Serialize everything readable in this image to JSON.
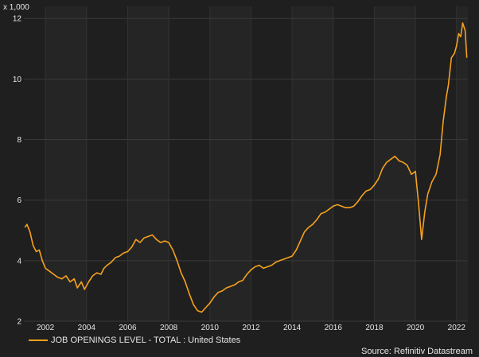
{
  "chart_data": {
    "type": "line",
    "unit_label": "x 1,000",
    "x_ticks": [
      "2002",
      "2004",
      "2006",
      "2008",
      "2010",
      "2012",
      "2014",
      "2016",
      "2018",
      "2020",
      "2022"
    ],
    "y_ticks": [
      "2",
      "4",
      "6",
      "8",
      "10",
      "12"
    ],
    "xlim": [
      2000.95,
      2022.55
    ],
    "ylim": [
      2,
      12.4
    ],
    "grid": true,
    "legend_position": "bottom-left",
    "source": "Source: Refinitiv Datastream",
    "series": [
      {
        "name": "JOB OPENINGS LEVEL - TOTAL : United States",
        "color": "#f5a11d",
        "points": [
          [
            2001.0,
            5.1
          ],
          [
            2001.1,
            5.2
          ],
          [
            2001.25,
            4.95
          ],
          [
            2001.4,
            4.5
          ],
          [
            2001.55,
            4.3
          ],
          [
            2001.7,
            4.35
          ],
          [
            2001.85,
            4.0
          ],
          [
            2002.0,
            3.75
          ],
          [
            2002.2,
            3.65
          ],
          [
            2002.4,
            3.55
          ],
          [
            2002.6,
            3.45
          ],
          [
            2002.8,
            3.4
          ],
          [
            2003.0,
            3.5
          ],
          [
            2003.2,
            3.3
          ],
          [
            2003.4,
            3.4
          ],
          [
            2003.55,
            3.1
          ],
          [
            2003.75,
            3.3
          ],
          [
            2003.9,
            3.05
          ],
          [
            2004.1,
            3.3
          ],
          [
            2004.3,
            3.5
          ],
          [
            2004.5,
            3.6
          ],
          [
            2004.7,
            3.55
          ],
          [
            2004.85,
            3.75
          ],
          [
            2005.0,
            3.85
          ],
          [
            2005.2,
            3.95
          ],
          [
            2005.4,
            4.1
          ],
          [
            2005.6,
            4.15
          ],
          [
            2005.8,
            4.25
          ],
          [
            2006.0,
            4.3
          ],
          [
            2006.2,
            4.45
          ],
          [
            2006.4,
            4.7
          ],
          [
            2006.6,
            4.6
          ],
          [
            2006.8,
            4.75
          ],
          [
            2007.0,
            4.8
          ],
          [
            2007.2,
            4.85
          ],
          [
            2007.4,
            4.7
          ],
          [
            2007.6,
            4.6
          ],
          [
            2007.8,
            4.65
          ],
          [
            2008.0,
            4.6
          ],
          [
            2008.2,
            4.35
          ],
          [
            2008.4,
            4.0
          ],
          [
            2008.6,
            3.6
          ],
          [
            2008.8,
            3.3
          ],
          [
            2009.0,
            2.9
          ],
          [
            2009.2,
            2.55
          ],
          [
            2009.4,
            2.35
          ],
          [
            2009.6,
            2.3
          ],
          [
            2009.8,
            2.45
          ],
          [
            2010.0,
            2.6
          ],
          [
            2010.2,
            2.8
          ],
          [
            2010.4,
            2.95
          ],
          [
            2010.6,
            3.0
          ],
          [
            2010.8,
            3.1
          ],
          [
            2011.0,
            3.15
          ],
          [
            2011.2,
            3.2
          ],
          [
            2011.4,
            3.3
          ],
          [
            2011.6,
            3.35
          ],
          [
            2011.8,
            3.55
          ],
          [
            2012.0,
            3.7
          ],
          [
            2012.2,
            3.8
          ],
          [
            2012.4,
            3.85
          ],
          [
            2012.6,
            3.75
          ],
          [
            2012.8,
            3.8
          ],
          [
            2013.0,
            3.85
          ],
          [
            2013.2,
            3.95
          ],
          [
            2013.4,
            4.0
          ],
          [
            2013.6,
            4.05
          ],
          [
            2013.8,
            4.1
          ],
          [
            2014.0,
            4.15
          ],
          [
            2014.2,
            4.35
          ],
          [
            2014.4,
            4.65
          ],
          [
            2014.6,
            4.95
          ],
          [
            2014.8,
            5.1
          ],
          [
            2015.0,
            5.2
          ],
          [
            2015.2,
            5.35
          ],
          [
            2015.4,
            5.55
          ],
          [
            2015.6,
            5.6
          ],
          [
            2015.8,
            5.7
          ],
          [
            2016.0,
            5.8
          ],
          [
            2016.2,
            5.85
          ],
          [
            2016.4,
            5.8
          ],
          [
            2016.6,
            5.75
          ],
          [
            2016.8,
            5.75
          ],
          [
            2017.0,
            5.8
          ],
          [
            2017.2,
            5.95
          ],
          [
            2017.4,
            6.15
          ],
          [
            2017.6,
            6.3
          ],
          [
            2017.8,
            6.35
          ],
          [
            2018.0,
            6.5
          ],
          [
            2018.2,
            6.7
          ],
          [
            2018.4,
            7.05
          ],
          [
            2018.6,
            7.25
          ],
          [
            2018.8,
            7.35
          ],
          [
            2019.0,
            7.45
          ],
          [
            2019.2,
            7.3
          ],
          [
            2019.4,
            7.25
          ],
          [
            2019.6,
            7.15
          ],
          [
            2019.8,
            6.85
          ],
          [
            2020.0,
            6.95
          ],
          [
            2020.15,
            5.9
          ],
          [
            2020.3,
            4.7
          ],
          [
            2020.45,
            5.6
          ],
          [
            2020.6,
            6.2
          ],
          [
            2020.8,
            6.6
          ],
          [
            2021.0,
            6.85
          ],
          [
            2021.2,
            7.5
          ],
          [
            2021.35,
            8.6
          ],
          [
            2021.5,
            9.4
          ],
          [
            2021.6,
            9.8
          ],
          [
            2021.75,
            10.7
          ],
          [
            2021.9,
            10.85
          ],
          [
            2022.0,
            11.1
          ],
          [
            2022.1,
            11.5
          ],
          [
            2022.2,
            11.4
          ],
          [
            2022.3,
            11.85
          ],
          [
            2022.42,
            11.6
          ],
          [
            2022.5,
            10.7
          ]
        ]
      }
    ]
  }
}
